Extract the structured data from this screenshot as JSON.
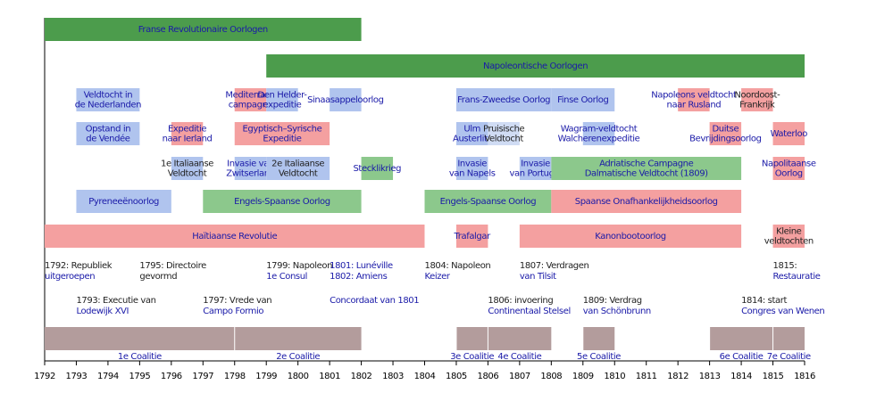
{
  "chart_data": {
    "type": "timeline",
    "xlim": [
      1792,
      1816
    ],
    "xticks": [
      1792,
      1793,
      1794,
      1795,
      1796,
      1797,
      1798,
      1799,
      1800,
      1801,
      1802,
      1803,
      1804,
      1805,
      1806,
      1807,
      1808,
      1809,
      1810,
      1811,
      1812,
      1813,
      1814,
      1815,
      1816
    ],
    "rows": [
      [
        {
          "label": "Franse Revolutionaire Oorlogen",
          "start": 1792,
          "end": 1802,
          "color": "#4c9c4c",
          "label_color": "#1a1aa8"
        }
      ],
      [
        {
          "label": "Napoleontische Oorlogen",
          "start": 1799,
          "end": 1816,
          "color": "#4c9c4c",
          "label_color": "#1a1aa8"
        }
      ],
      [
        {
          "label": "Veldtocht in\nde Nederlanden",
          "start": 1793,
          "end": 1795,
          "color": "#b0c4ee",
          "label_color": "#1a1aa8"
        },
        {
          "label": "Mediterrane\ncampagne",
          "start": 1798,
          "end": 1799,
          "color": "#f4a0a0",
          "label_color": "#1a1aa8"
        },
        {
          "label": "Den Helder-\nexpeditie",
          "start": 1799,
          "end": 1800,
          "color": "#b0c4ee",
          "label_color": "#1a1aa8"
        },
        {
          "label": "Sinaasappeloorlog",
          "start": 1801,
          "end": 1802,
          "color": "#b0c4ee",
          "label_color": "#1a1aa8"
        },
        {
          "label": "Frans-Zweedse Oorlog",
          "start": 1805,
          "end": 1808,
          "color": "#b0c4ee",
          "label_color": "#1a1aa8"
        },
        {
          "label": "Finse Oorlog",
          "start": 1808,
          "end": 1810,
          "color": "#b0c4ee",
          "label_color": "#1a1aa8"
        },
        {
          "label": "Napoleons veldtocht\nnaar Rusland",
          "start": 1812,
          "end": 1813,
          "color": "#f4a0a0",
          "label_color": "#1a1aa8"
        },
        {
          "label": "Noordoost-\nFrankrijk",
          "start": 1814,
          "end": 1815,
          "color": "#f4a0a0",
          "label_color": "#222222"
        }
      ],
      [
        {
          "label": "Opstand in\nde Vendée",
          "start": 1793,
          "end": 1795,
          "color": "#b0c4ee",
          "label_color": "#1a1aa8"
        },
        {
          "label": "Expeditie\nnaar Ierland",
          "start": 1796,
          "end": 1797,
          "color": "#f4a0a0",
          "label_color": "#1a1aa8"
        },
        {
          "label": "Egyptisch–Syrische\nExpeditie",
          "start": 1798,
          "end": 1801,
          "color": "#f4a0a0",
          "label_color": "#1a1aa8"
        },
        {
          "label": "Ulm\nAusterlitz",
          "start": 1805,
          "end": 1806,
          "color": "#b0c4ee",
          "label_color": "#1a1aa8"
        },
        {
          "label": "Pruisische\nVeldtocht",
          "start": 1806,
          "end": 1807,
          "color": "#d0dcf4",
          "label_color": "#222222"
        },
        {
          "label": "Wagram-veldtocht\nWalcherenexpeditie",
          "start": 1809,
          "end": 1810,
          "color": "#b0c4ee",
          "label_color": "#1a1aa8"
        },
        {
          "label": "Duitse\nBevrijdingsoorlog",
          "start": 1813,
          "end": 1814,
          "color": "#f4a0a0",
          "label_color": "#1a1aa8"
        },
        {
          "label": "Waterloo",
          "start": 1815,
          "end": 1816,
          "color": "#f4a0a0",
          "label_color": "#1a1aa8"
        }
      ],
      [
        {
          "label": "1e Italiaanse\nVeldtocht",
          "start": 1796,
          "end": 1797,
          "color": "#b0c4ee",
          "label_color": "#222222"
        },
        {
          "label": "Invasie van\nZwitserland",
          "start": 1798,
          "end": 1799,
          "color": "#b0c4ee",
          "label_color": "#1a1aa8"
        },
        {
          "label": "2e Italiaanse\nVeldtocht",
          "start": 1799,
          "end": 1801,
          "color": "#b0c4ee",
          "label_color": "#222222"
        },
        {
          "label": "Stecklikrieg",
          "start": 1802,
          "end": 1803,
          "color": "#8cc88c",
          "label_color": "#1a1aa8"
        },
        {
          "label": "Invasie\nvan Napels",
          "start": 1805,
          "end": 1806,
          "color": "#b0c4ee",
          "label_color": "#1a1aa8"
        },
        {
          "label": "Invasie\nvan Portugal",
          "start": 1807,
          "end": 1808,
          "color": "#b0c4ee",
          "label_color": "#1a1aa8"
        },
        {
          "label": "Adriatische Campagne\nDalmatische Veldtocht (1809)",
          "start": 1808,
          "end": 1814,
          "color": "#8cc88c",
          "label_color": "#1a1aa8"
        },
        {
          "label": "Napolitaanse\nOorlog",
          "start": 1815,
          "end": 1816,
          "color": "#f4a0a0",
          "label_color": "#1a1aa8"
        }
      ],
      [
        {
          "label": "Pyreneeënoorlog",
          "start": 1793,
          "end": 1796,
          "color": "#b0c4ee",
          "label_color": "#1a1aa8"
        },
        {
          "label": "Engels-Spaanse Oorlog",
          "start": 1797,
          "end": 1802,
          "color": "#8cc88c",
          "label_color": "#1a1aa8"
        },
        {
          "label": "Engels-Spaanse Oorlog",
          "start": 1804,
          "end": 1808,
          "color": "#8cc88c",
          "label_color": "#1a1aa8"
        },
        {
          "label": "Spaanse Onafhankelijkheidsoorlog",
          "start": 1808,
          "end": 1814,
          "color": "#f4a0a0",
          "label_color": "#1a1aa8"
        }
      ],
      [
        {
          "label": "Haïtiaanse Revolutie",
          "start": 1792,
          "end": 1804,
          "color": "#f4a0a0",
          "label_color": "#1a1aa8"
        },
        {
          "label": "Trafalgar",
          "start": 1805,
          "end": 1806,
          "color": "#f4a0a0",
          "label_color": "#1a1aa8"
        },
        {
          "label": "Kanonbootoorlog",
          "start": 1807,
          "end": 1814,
          "color": "#f4a0a0",
          "label_color": "#1a1aa8"
        },
        {
          "label": "Kleine\nveldtochten",
          "start": 1815,
          "end": 1816,
          "color": "#f4a0a0",
          "label_color": "#222222"
        }
      ]
    ],
    "events": [
      [
        {
          "x": 1792,
          "lines": [
            "1792: Republiek",
            "uitgeroepen"
          ],
          "colors": [
            "#222222",
            "#1a1aa8"
          ]
        },
        {
          "x": 1795,
          "lines": [
            "1795: Directoire",
            "gevormd"
          ],
          "colors": [
            "#222222",
            "#222222"
          ]
        },
        {
          "x": 1799,
          "lines": [
            "1799: Napoleon",
            "1e Consul"
          ],
          "colors": [
            "#222222",
            "#1a1aa8"
          ]
        },
        {
          "x": 1801,
          "lines": [
            "1801: Lunéville",
            "1802: Amiens"
          ],
          "colors": [
            "#1a1aa8",
            "#1a1aa8"
          ]
        },
        {
          "x": 1804,
          "lines": [
            "1804: Napoleon",
            "Keizer"
          ],
          "colors": [
            "#222222",
            "#1a1aa8"
          ]
        },
        {
          "x": 1807,
          "lines": [
            "1807: Verdragen",
            "van Tilsit"
          ],
          "colors": [
            "#222222",
            "#1a1aa8"
          ]
        },
        {
          "x": 1815,
          "lines": [
            "1815:",
            "Restauratie"
          ],
          "colors": [
            "#222222",
            "#1a1aa8"
          ]
        }
      ],
      [
        {
          "x": 1793,
          "lines": [
            "1793: Executie van",
            "Lodewijk XVI"
          ],
          "colors": [
            "#222222",
            "#1a1aa8"
          ]
        },
        {
          "x": 1797,
          "lines": [
            "1797: Vrede van",
            "Campo Formio"
          ],
          "colors": [
            "#222222",
            "#1a1aa8"
          ]
        },
        {
          "x": 1801,
          "lines": [
            "Concordaat van 1801"
          ],
          "colors": [
            "#1a1aa8"
          ]
        },
        {
          "x": 1806,
          "lines": [
            "1806: invoering",
            "Continentaal Stelsel"
          ],
          "colors": [
            "#222222",
            "#1a1aa8"
          ]
        },
        {
          "x": 1809,
          "lines": [
            "1809: Verdrag",
            "van Schönbrunn"
          ],
          "colors": [
            "#222222",
            "#1a1aa8"
          ]
        },
        {
          "x": 1814,
          "lines": [
            "1814: start",
            "Congres van Wenen"
          ],
          "colors": [
            "#222222",
            "#1a1aa8"
          ]
        }
      ]
    ],
    "coalitions": {
      "color": "#b39c9c",
      "label_color": "#1a1aa8",
      "items": [
        {
          "label": "1e Coalitie",
          "start": 1792,
          "end": 1798
        },
        {
          "label": "2e Coalitie",
          "start": 1798,
          "end": 1802
        },
        {
          "label": "3e Coalitie",
          "start": 1805,
          "end": 1806
        },
        {
          "label": "4e Coalitie",
          "start": 1806,
          "end": 1808
        },
        {
          "label": "5e Coalitie",
          "start": 1809,
          "end": 1810
        },
        {
          "label": "6e Coalitie",
          "start": 1813,
          "end": 1815
        },
        {
          "label": "7e Coalitie",
          "start": 1815,
          "end": 1816
        }
      ]
    }
  }
}
